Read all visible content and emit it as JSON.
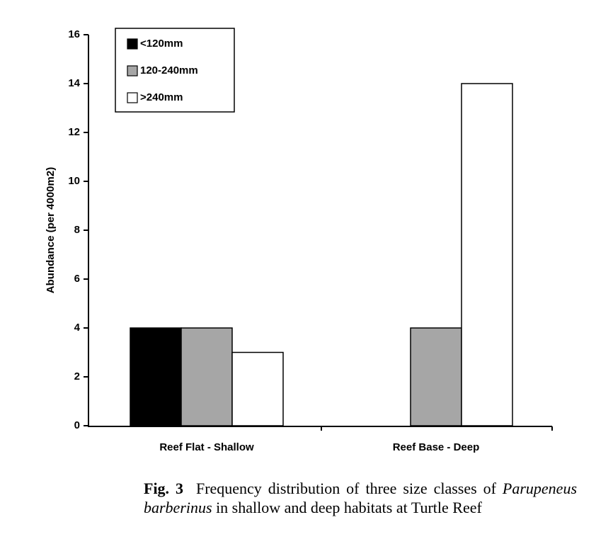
{
  "chart_data": {
    "type": "bar",
    "ylabel": "Abundance (per 4000m2)",
    "categories": [
      "Reef Flat - Shallow",
      "Reef Base - Deep"
    ],
    "series": [
      {
        "name": "<120mm",
        "color": "#000000",
        "values": [
          4,
          0
        ]
      },
      {
        "name": "120-240mm",
        "color": "#a6a6a6",
        "values": [
          4,
          4
        ]
      },
      {
        "name": ">240mm",
        "color": "#ffffff",
        "values": [
          3,
          14
        ]
      }
    ],
    "ylim": [
      0,
      16
    ],
    "yticks": [
      0,
      2,
      4,
      6,
      8,
      10,
      12,
      14,
      16
    ],
    "grid": false,
    "legend": "top-left"
  },
  "caption": {
    "label": "Fig. 3",
    "text1": "Frequency distribution of three size classes of",
    "italic": "Parupeneus barberinus",
    "text2": "in shallow and deep habitats at Turtle Reef"
  }
}
